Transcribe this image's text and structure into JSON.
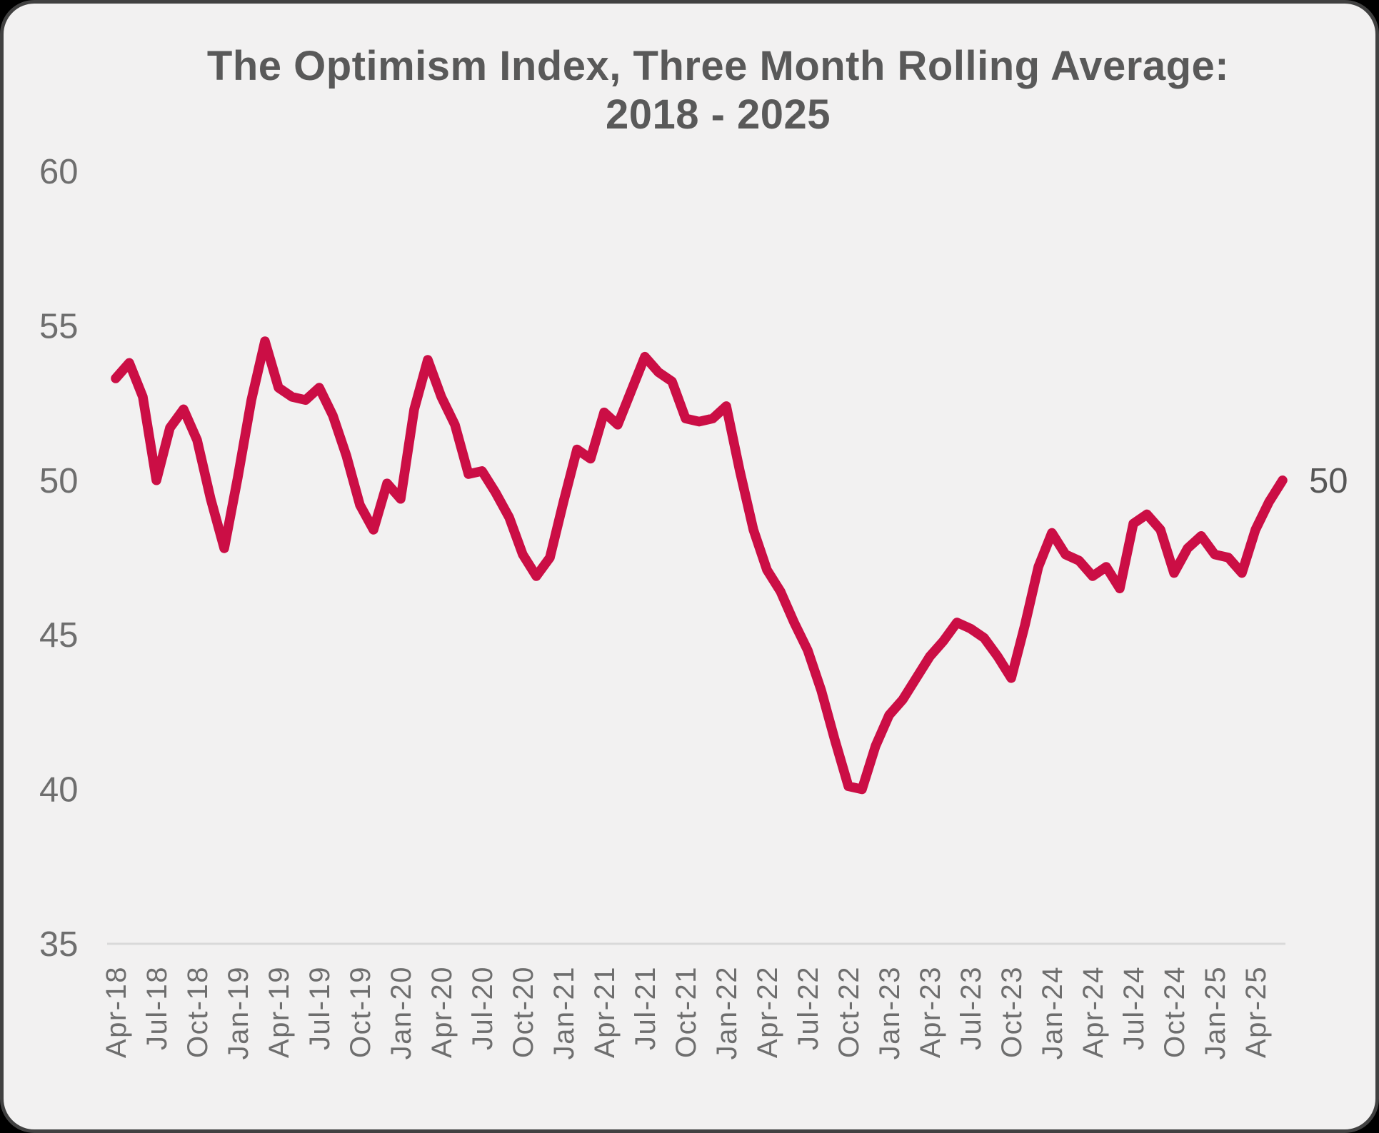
{
  "title": {
    "line1": "The Optimism Index, Three Month Rolling Average:",
    "line2": "2018 - 2025"
  },
  "colors": {
    "page_background": "#000000",
    "card_background": "#f2f1f1",
    "card_border": "#414141",
    "title_text": "#595959",
    "axis_labels": "#6e6e6e",
    "axis_line": "#d9d9d9",
    "series_line": "#CB0E45",
    "end_label_text": "#565656"
  },
  "chart_data": {
    "type": "line",
    "title": "The Optimism Index, Three Month Rolling Average: 2018 - 2025",
    "xlabel": "",
    "ylabel": "",
    "ylim": [
      35,
      60
    ],
    "y_ticks": [
      60,
      55,
      50,
      45,
      40,
      35
    ],
    "grid": false,
    "legend": "none",
    "end_value_label": "50",
    "x_tick_labels": [
      "Apr-18",
      "Jul-18",
      "Oct-18",
      "Jan-19",
      "Apr-19",
      "Jul-19",
      "Oct-19",
      "Jan-20",
      "Apr-20",
      "Jul-20",
      "Oct-20",
      "Jan-21",
      "Apr-21",
      "Jul-21",
      "Oct-21",
      "Jan-22",
      "Apr-22",
      "Jul-22",
      "Oct-22",
      "Jan-23",
      "Apr-23",
      "Jul-23",
      "Oct-23",
      "Jan-24",
      "Apr-24",
      "Jul-24",
      "Oct-24",
      "Jan-25",
      "Apr-25"
    ],
    "x": [
      "Apr-18",
      "May-18",
      "Jun-18",
      "Jul-18",
      "Aug-18",
      "Sep-18",
      "Oct-18",
      "Nov-18",
      "Dec-18",
      "Jan-19",
      "Feb-19",
      "Mar-19",
      "Apr-19",
      "May-19",
      "Jun-19",
      "Jul-19",
      "Aug-19",
      "Sep-19",
      "Oct-19",
      "Nov-19",
      "Dec-19",
      "Jan-20",
      "Feb-20",
      "Mar-20",
      "Apr-20",
      "May-20",
      "Jun-20",
      "Jul-20",
      "Aug-20",
      "Sep-20",
      "Oct-20",
      "Nov-20",
      "Dec-20",
      "Jan-21",
      "Feb-21",
      "Mar-21",
      "Apr-21",
      "May-21",
      "Jun-21",
      "Jul-21",
      "Aug-21",
      "Sep-21",
      "Oct-21",
      "Nov-21",
      "Dec-21",
      "Jan-22",
      "Feb-22",
      "Mar-22",
      "Apr-22",
      "May-22",
      "Jun-22",
      "Jul-22",
      "Aug-22",
      "Sep-22",
      "Oct-22",
      "Nov-22",
      "Dec-22",
      "Jan-23",
      "Feb-23",
      "Mar-23",
      "Apr-23",
      "May-23",
      "Jun-23",
      "Jul-23",
      "Aug-23",
      "Sep-23",
      "Oct-23",
      "Nov-23",
      "Dec-23",
      "Jan-24",
      "Feb-24",
      "Mar-24",
      "Apr-24",
      "May-24",
      "Jun-24",
      "Jul-24",
      "Aug-24",
      "Sep-24",
      "Oct-24",
      "Nov-24",
      "Dec-24",
      "Jan-25",
      "Feb-25",
      "Mar-25",
      "Apr-25",
      "May-25",
      "Jun-25"
    ],
    "series": [
      {
        "name": "Optimism Index, three month rolling average",
        "color": "#CB0E45",
        "values": [
          53.3,
          53.8,
          52.7,
          50.0,
          51.7,
          52.3,
          51.3,
          49.4,
          47.8,
          50.1,
          52.6,
          54.5,
          53.0,
          52.7,
          52.6,
          53.0,
          52.1,
          50.8,
          49.2,
          48.4,
          49.9,
          49.4,
          52.3,
          53.9,
          52.7,
          51.8,
          50.2,
          50.3,
          49.6,
          48.8,
          47.6,
          46.9,
          47.5,
          49.3,
          51.0,
          50.7,
          52.2,
          51.8,
          52.9,
          54.0,
          53.5,
          53.2,
          52.0,
          51.9,
          52.0,
          52.4,
          50.3,
          48.4,
          47.1,
          46.4,
          45.4,
          44.5,
          43.2,
          41.6,
          40.1,
          40.0,
          41.4,
          42.4,
          42.9,
          43.6,
          44.3,
          44.8,
          45.4,
          45.2,
          44.9,
          44.3,
          43.6,
          45.3,
          47.2,
          48.3,
          47.6,
          47.4,
          46.9,
          47.2,
          46.5,
          48.6,
          48.9,
          48.4,
          47.0,
          47.8,
          48.2,
          47.6,
          47.5,
          47.0,
          48.4,
          49.3,
          50.0
        ]
      }
    ]
  }
}
